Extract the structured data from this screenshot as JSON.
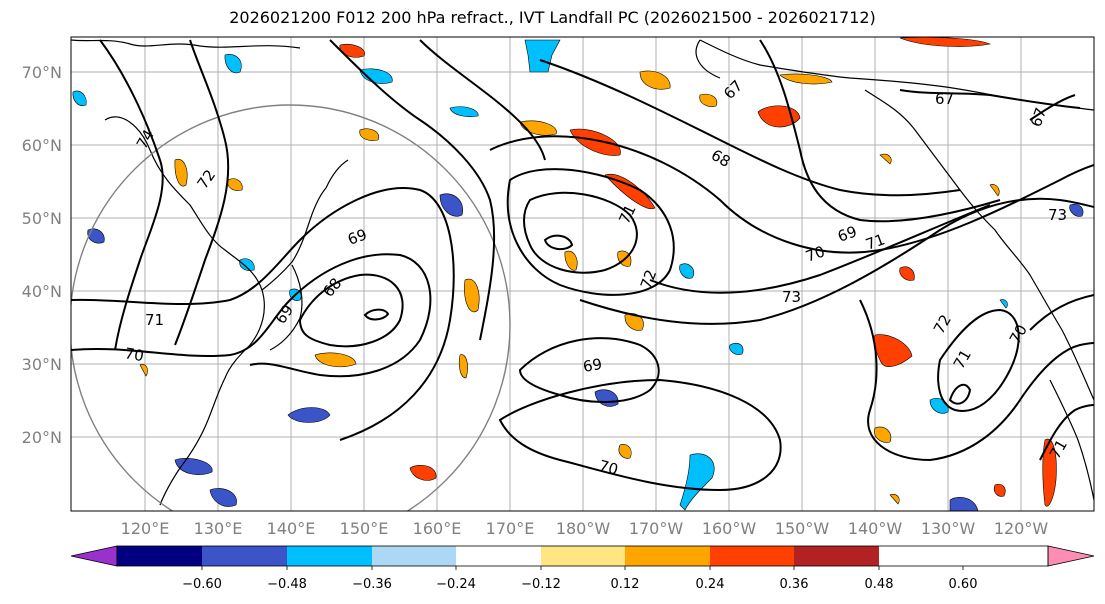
{
  "title": "2026021200 F012 200 hPa refract., IVT Landfall PC (2026021500 - 2026021712)",
  "map": {
    "projection": "PlateCarree",
    "lon_range": [
      110,
      250
    ],
    "lat_range": [
      10,
      75
    ],
    "lat_labels": [
      "70°N",
      "60°N",
      "50°N",
      "40°N",
      "30°N",
      "20°N"
    ],
    "lon_labels": [
      "120°E",
      "130°E",
      "140°E",
      "150°E",
      "160°E",
      "170°E",
      "180°W",
      "170°W",
      "160°W",
      "150°W",
      "140°W",
      "130°W",
      "120°W"
    ],
    "contour_labels": [
      "74",
      "72",
      "71",
      "70",
      "69",
      "68",
      "69",
      "71",
      "70",
      "69",
      "73",
      "67",
      "67",
      "68",
      "67",
      "70",
      "69",
      "71",
      "72",
      "71",
      "70",
      "71",
      "73",
      "72"
    ],
    "gridlines": true,
    "coastline_color": "#000000",
    "contour_color": "#000000",
    "circle_color": "#808080"
  },
  "colorbar": {
    "ticks": [
      "−0.60",
      "−0.48",
      "−0.36",
      "−0.24",
      "−0.12",
      "0.12",
      "0.24",
      "0.36",
      "0.48",
      "0.60"
    ],
    "colors": [
      "#9932cc",
      "#000080",
      "#3b54c8",
      "#00bfff",
      "#add8f5",
      "#ffffff",
      "#ffe680",
      "#ffa500",
      "#ff4000",
      "#b22222",
      "#ff8cb4"
    ],
    "extend": "both"
  }
}
